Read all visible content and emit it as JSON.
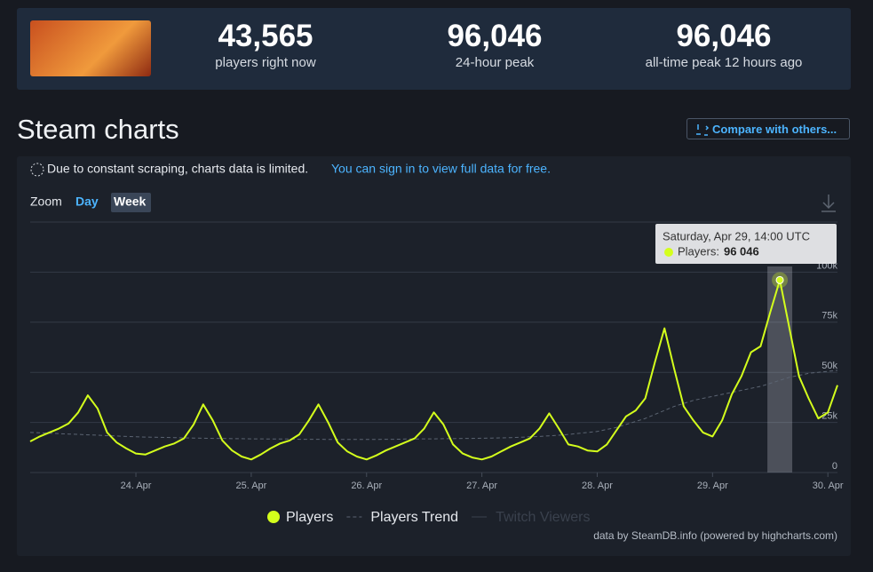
{
  "header": {
    "stats": [
      {
        "value": "43,565",
        "label": "players right now"
      },
      {
        "value": "96,046",
        "label": "24-hour peak"
      },
      {
        "value": "96,046",
        "label": "all-time peak 12 hours ago"
      }
    ]
  },
  "section": {
    "title": "Steam charts",
    "compare_button": "Compare with others...",
    "notice": "Due to constant scraping, charts data is limited.",
    "notice_link": "You can sign in to view full data for free.",
    "zoom_label": "Zoom",
    "zoom_options": [
      "Day",
      "Week"
    ]
  },
  "chart_data": {
    "type": "line",
    "x": [
      "Apr 23, 02:00",
      "Apr 23, 04:00",
      "Apr 23, 06:00",
      "Apr 23, 08:00",
      "Apr 23, 10:00",
      "Apr 23, 12:00",
      "Apr 23, 14:00",
      "Apr 23, 16:00",
      "Apr 23, 18:00",
      "Apr 23, 20:00",
      "Apr 23, 22:00",
      "Apr 24, 00:00",
      "Apr 24, 02:00",
      "Apr 24, 04:00",
      "Apr 24, 06:00",
      "Apr 24, 08:00",
      "Apr 24, 10:00",
      "Apr 24, 12:00",
      "Apr 24, 14:00",
      "Apr 24, 16:00",
      "Apr 24, 18:00",
      "Apr 24, 20:00",
      "Apr 24, 22:00",
      "Apr 25, 00:00",
      "Apr 25, 02:00",
      "Apr 25, 04:00",
      "Apr 25, 06:00",
      "Apr 25, 08:00",
      "Apr 25, 10:00",
      "Apr 25, 12:00",
      "Apr 25, 14:00",
      "Apr 25, 16:00",
      "Apr 25, 18:00",
      "Apr 25, 20:00",
      "Apr 25, 22:00",
      "Apr 26, 00:00",
      "Apr 26, 02:00",
      "Apr 26, 04:00",
      "Apr 26, 06:00",
      "Apr 26, 08:00",
      "Apr 26, 10:00",
      "Apr 26, 12:00",
      "Apr 26, 14:00",
      "Apr 26, 16:00",
      "Apr 26, 18:00",
      "Apr 26, 20:00",
      "Apr 26, 22:00",
      "Apr 27, 00:00",
      "Apr 27, 02:00",
      "Apr 27, 04:00",
      "Apr 27, 06:00",
      "Apr 27, 08:00",
      "Apr 27, 10:00",
      "Apr 27, 12:00",
      "Apr 27, 14:00",
      "Apr 27, 16:00",
      "Apr 27, 18:00",
      "Apr 27, 20:00",
      "Apr 27, 22:00",
      "Apr 28, 00:00",
      "Apr 28, 02:00",
      "Apr 28, 04:00",
      "Apr 28, 06:00",
      "Apr 28, 08:00",
      "Apr 28, 10:00",
      "Apr 28, 12:00",
      "Apr 28, 14:00",
      "Apr 28, 16:00",
      "Apr 28, 18:00",
      "Apr 28, 20:00",
      "Apr 28, 22:00",
      "Apr 29, 00:00",
      "Apr 29, 02:00",
      "Apr 29, 04:00",
      "Apr 29, 06:00",
      "Apr 29, 08:00",
      "Apr 29, 10:00",
      "Apr 29, 12:00",
      "Apr 29, 14:00",
      "Apr 29, 16:00",
      "Apr 29, 18:00",
      "Apr 29, 20:00",
      "Apr 29, 22:00",
      "Apr 30, 00:00",
      "Apr 30, 02:00"
    ],
    "series": [
      {
        "name": "Players",
        "color": "#d4ff1c",
        "values": [
          15500,
          18000,
          20000,
          22000,
          24500,
          30000,
          38500,
          32000,
          20000,
          15000,
          12000,
          9500,
          9000,
          11000,
          13000,
          14500,
          17000,
          24000,
          34000,
          26000,
          16000,
          11000,
          8000,
          6500,
          9000,
          12000,
          14500,
          16000,
          19000,
          26000,
          34000,
          25000,
          15000,
          10500,
          8000,
          6500,
          8500,
          11000,
          13000,
          15000,
          17000,
          22000,
          30000,
          24000,
          14000,
          9500,
          7500,
          6500,
          8000,
          10500,
          13000,
          15000,
          17000,
          22000,
          29500,
          22000,
          14000,
          13000,
          11000,
          10500,
          14000,
          21000,
          28000,
          31000,
          37000,
          55000,
          72000,
          52000,
          33000,
          26000,
          20000,
          18000,
          26000,
          39000,
          48000,
          60000,
          63000,
          80000,
          96046,
          72000,
          48000,
          37000,
          27000,
          30000,
          43565
        ]
      },
      {
        "name": "Players Trend",
        "color": "#5b6472",
        "dashed": true,
        "values": [
          20000,
          19800,
          19600,
          19400,
          19200,
          19000,
          18800,
          18600,
          18400,
          18200,
          18000,
          17800,
          17700,
          17600,
          17500,
          17400,
          17300,
          17200,
          17100,
          17000,
          17000,
          16900,
          16900,
          16800,
          16800,
          16700,
          16700,
          16700,
          16600,
          16600,
          16600,
          16500,
          16500,
          16500,
          16500,
          16500,
          16500,
          16600,
          16600,
          16700,
          16700,
          16800,
          16800,
          16900,
          16900,
          17000,
          17000,
          17100,
          17200,
          17300,
          17400,
          17600,
          17800,
          18000,
          18300,
          18600,
          19000,
          19500,
          20000,
          20500,
          21500,
          22500,
          24000,
          25500,
          27000,
          29000,
          31000,
          33000,
          34500,
          36000,
          37000,
          38000,
          39000,
          40000,
          41000,
          42000,
          43000,
          44500,
          46000,
          47500,
          48500,
          49500,
          50000,
          50500,
          51000
        ]
      }
    ],
    "inactive_legend": [
      {
        "name": "Twitch Viewers",
        "color": "#3a414d"
      }
    ],
    "xlim": [
      "Apr 23, 02:00",
      "Apr 30, 02:00"
    ],
    "xticks": [
      {
        "value": "Apr 24, 00:00",
        "label": "24. Apr"
      },
      {
        "value": "Apr 25, 00:00",
        "label": "25. Apr"
      },
      {
        "value": "Apr 26, 00:00",
        "label": "26. Apr"
      },
      {
        "value": "Apr 27, 00:00",
        "label": "27. Apr"
      },
      {
        "value": "Apr 28, 00:00",
        "label": "28. Apr"
      },
      {
        "value": "Apr 29, 00:00",
        "label": "29. Apr"
      },
      {
        "value": "Apr 30, 00:00",
        "label": "30. Apr"
      }
    ],
    "ylim": [
      0,
      125000
    ],
    "yticks": [
      0,
      {
        "value": 25000,
        "label": "25k"
      },
      {
        "value": 50000,
        "label": "50k"
      },
      {
        "value": 75000,
        "label": "75k"
      },
      {
        "value": 100000,
        "label": "100k"
      }
    ],
    "grid": true,
    "tooltip": {
      "text": "Saturday, Apr 29, 14:00 UTC",
      "series_label": "Players:",
      "value_label": "96 046"
    },
    "credit": "data by SteamDB.info (powered by highcharts.com)"
  }
}
